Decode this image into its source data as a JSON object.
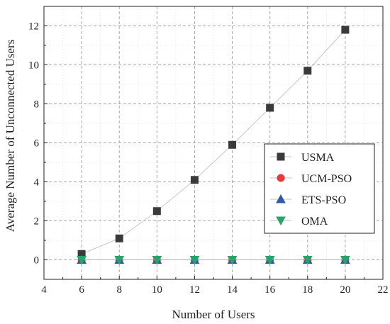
{
  "chart_data": {
    "type": "line",
    "xlabel": "Number of Users",
    "ylabel": "Average Number of Unconnected Users",
    "xlim": [
      4,
      22
    ],
    "ylim": [
      -1,
      13
    ],
    "x_ticks": [
      4,
      6,
      8,
      10,
      12,
      14,
      16,
      18,
      20,
      22
    ],
    "y_ticks": [
      0,
      2,
      4,
      6,
      8,
      10,
      12
    ],
    "grid": true,
    "legend_position": "center-right",
    "x": [
      6,
      8,
      10,
      12,
      14,
      16,
      18,
      20
    ],
    "series": [
      {
        "name": "USMA",
        "values": [
          0.3,
          1.1,
          2.5,
          4.1,
          5.9,
          7.8,
          9.7,
          11.8
        ],
        "color": "#3a3a3a",
        "marker": "square"
      },
      {
        "name": "UCM-PSO",
        "values": [
          0,
          0,
          0,
          0,
          0,
          0,
          0,
          0
        ],
        "color": "#e8383d",
        "marker": "circle"
      },
      {
        "name": "ETS-PSO",
        "values": [
          0,
          0,
          0,
          0,
          0,
          0,
          0,
          0
        ],
        "color": "#2f5aa8",
        "marker": "triangle-up"
      },
      {
        "name": "OMA",
        "values": [
          0,
          0,
          0,
          0,
          0,
          0,
          0,
          0
        ],
        "color": "#2aa36b",
        "marker": "triangle-down"
      }
    ]
  }
}
